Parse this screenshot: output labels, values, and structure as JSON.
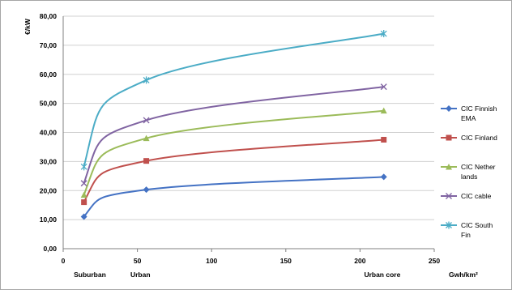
{
  "chart_data": {
    "type": "line",
    "title": "",
    "ylabel": "€/kW",
    "xlabel": "Gwh/km²",
    "ylim": [
      0,
      80
    ],
    "xlim": [
      0,
      250
    ],
    "y_ticks": [
      "0,00",
      "10,00",
      "20,00",
      "30,00",
      "40,00",
      "50,00",
      "60,00",
      "70,00",
      "80,00"
    ],
    "x_ticks": [
      "0",
      "50",
      "100",
      "150",
      "200",
      "250"
    ],
    "x_category_labels": [
      {
        "x": 18,
        "label": "Suburban"
      },
      {
        "x": 52,
        "label": "Urban"
      },
      {
        "x": 215,
        "label": "Urban core"
      }
    ],
    "grid": "horizontal",
    "legend_position": "right",
    "series": [
      {
        "name": "CIC Finnish EMA",
        "legend_lines": [
          "CIC Finnish",
          "EMA"
        ],
        "color": "#4472C4",
        "marker": "diamond",
        "x": [
          14,
          56,
          216
        ],
        "y": [
          11,
          20.3,
          24.7
        ]
      },
      {
        "name": "CIC Finland",
        "legend_lines": [
          "CIC Finland"
        ],
        "color": "#C0504D",
        "marker": "square",
        "x": [
          14,
          56,
          216
        ],
        "y": [
          16,
          30.2,
          37.5
        ]
      },
      {
        "name": "CIC Nether lands",
        "legend_lines": [
          "CIC Nether",
          "lands"
        ],
        "color": "#9BBB59",
        "marker": "triangle",
        "x": [
          14,
          56,
          216
        ],
        "y": [
          18.5,
          38,
          47.5
        ]
      },
      {
        "name": "CIC cable",
        "legend_lines": [
          "CIC cable"
        ],
        "color": "#8064A2",
        "marker": "x",
        "x": [
          14,
          56,
          216
        ],
        "y": [
          22.5,
          44.2,
          55.7
        ]
      },
      {
        "name": "CIC South Fin",
        "legend_lines": [
          "CIC South",
          "Fin"
        ],
        "color": "#4BACC6",
        "marker": "star",
        "x": [
          14,
          56,
          216
        ],
        "y": [
          28.2,
          58,
          74
        ]
      }
    ]
  }
}
